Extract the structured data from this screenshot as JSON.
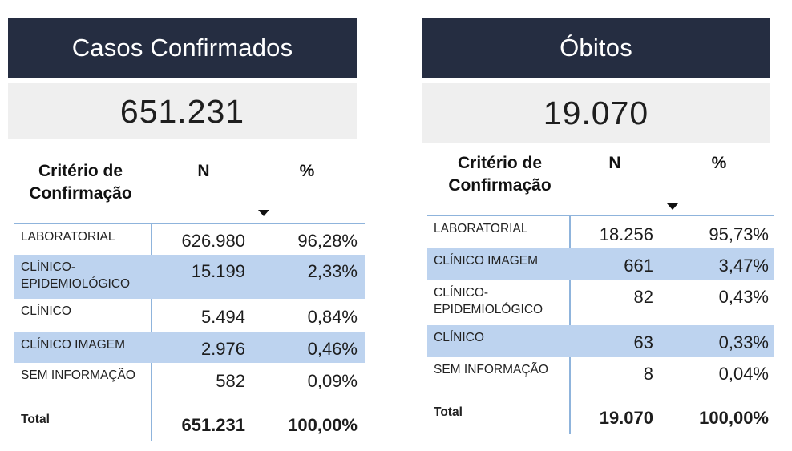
{
  "casos": {
    "title": "Casos Confirmados",
    "kpi": "651.231",
    "headers": {
      "criterio": "Critério de Confirmação",
      "n": "N",
      "pct": "%"
    },
    "rows": [
      {
        "label": "LABORATORIAL",
        "n": "626.980",
        "pct": "96,28%",
        "highlight": false
      },
      {
        "label": "CLÍNICO-EPIDEMIOLÓGICO",
        "n": "15.199",
        "pct": "2,33%",
        "highlight": true
      },
      {
        "label": "CLÍNICO",
        "n": "5.494",
        "pct": "0,84%",
        "highlight": false
      },
      {
        "label": "CLÍNICO IMAGEM",
        "n": "2.976",
        "pct": "0,46%",
        "highlight": true
      },
      {
        "label": "SEM INFORMAÇÃO",
        "n": "582",
        "pct": "0,09%",
        "highlight": false
      }
    ],
    "total": {
      "label": "Total",
      "n": "651.231",
      "pct": "100,00%"
    }
  },
  "obitos": {
    "title": "Óbitos",
    "kpi": "19.070",
    "headers": {
      "criterio": "Critério de Confirmação",
      "n": "N",
      "pct": "%"
    },
    "rows": [
      {
        "label": "LABORATORIAL",
        "n": "18.256",
        "pct": "95,73%",
        "highlight": false
      },
      {
        "label": "CLÍNICO IMAGEM",
        "n": "661",
        "pct": "3,47%",
        "highlight": true
      },
      {
        "label": "CLÍNICO-EPIDEMIOLÓGICO",
        "n": "82",
        "pct": "0,43%",
        "highlight": false
      },
      {
        "label": "CLÍNICO",
        "n": "63",
        "pct": "0,33%",
        "highlight": true
      },
      {
        "label": "SEM INFORMAÇÃO",
        "n": "8",
        "pct": "0,04%",
        "highlight": false
      }
    ],
    "total": {
      "label": "Total",
      "n": "19.070",
      "pct": "100,00%"
    }
  },
  "colors": {
    "banner": "#252d41",
    "kpi_background": "#efefef",
    "row_highlight": "#bdd3ef",
    "grid_line": "#8fb4dc"
  },
  "icons": {
    "sort": "sort-descending-icon"
  }
}
